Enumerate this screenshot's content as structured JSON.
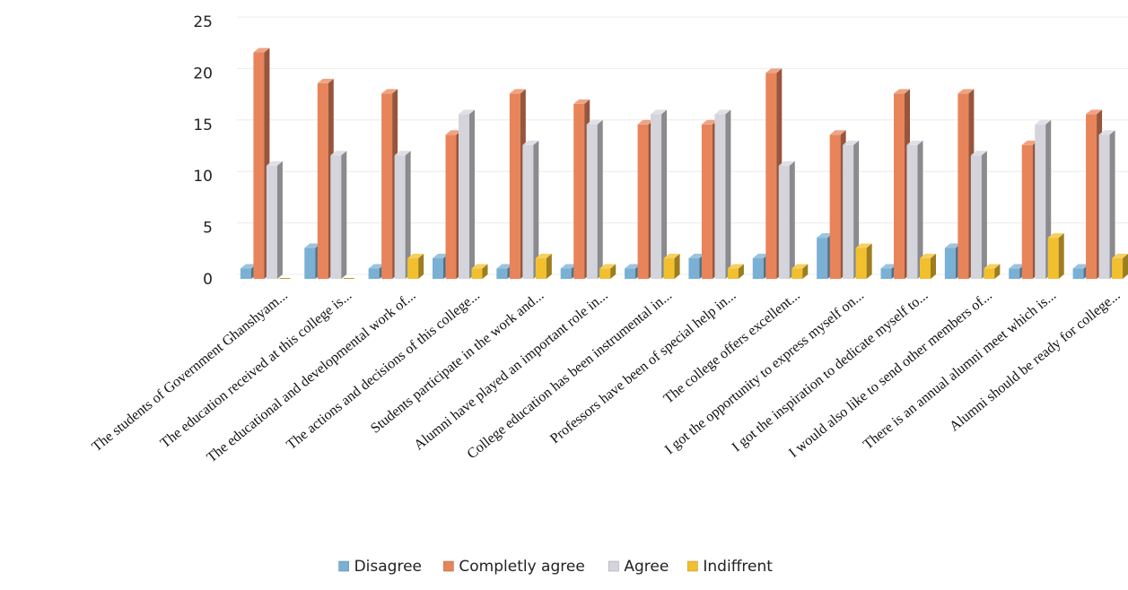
{
  "chart_data": {
    "type": "bar",
    "title": "",
    "xlabel": "",
    "ylabel": "",
    "ylim": [
      0,
      25
    ],
    "yticks": [
      0,
      5,
      10,
      15,
      20,
      25
    ],
    "grid": true,
    "legend_position": "bottom",
    "categories": [
      "The students of Government Ghanshyam...",
      "The education received at this college is...",
      "The educational and developmental work of...",
      "The actions and decisions of this college...",
      "Students participate in the work and...",
      "Alumni have played an important role in...",
      "College education has been instrumental in...",
      "Professors have been of special help in...",
      "The college offers excellent...",
      "I got the opportunity to express myself on...",
      "I got the inspiration to dedicate myself to...",
      "I would also like to send other members of...",
      "There is an annual alumni meet which is...",
      "Alumni should be ready for college..."
    ],
    "series": [
      {
        "name": "Disagree",
        "color": "#7ab0d4",
        "values": [
          1,
          3,
          1,
          2,
          1,
          1,
          1,
          2,
          2,
          4,
          1,
          3,
          1,
          1
        ]
      },
      {
        "name": "Completly agree",
        "color": "#e8845a",
        "values": [
          22,
          19,
          18,
          14,
          18,
          17,
          15,
          15,
          20,
          14,
          18,
          18,
          13,
          16
        ]
      },
      {
        "name": "Agree",
        "color": "#d4d4dc",
        "values": [
          11,
          12,
          12,
          16,
          13,
          15,
          16,
          16,
          11,
          13,
          13,
          12,
          15,
          14
        ]
      },
      {
        "name": "Indiffrent",
        "color": "#f2c02e",
        "values": [
          0,
          0,
          2,
          1,
          2,
          1,
          2,
          1,
          1,
          3,
          2,
          1,
          4,
          2
        ]
      }
    ]
  }
}
